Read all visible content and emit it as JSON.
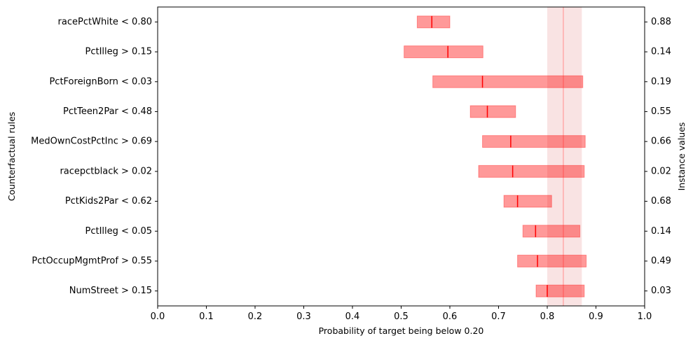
{
  "chart_data": {
    "type": "interval",
    "xlabel": "Probability of target being below 0.20",
    "ylabel_left": "Counterfactual rules",
    "ylabel_right": "Instance values",
    "xlim": [
      0.0,
      1.0
    ],
    "xticks": [
      0.0,
      0.1,
      0.2,
      0.3,
      0.4,
      0.5,
      0.6,
      0.7,
      0.8,
      0.9,
      1.0
    ],
    "xtick_labels": [
      "0.0",
      "0.1",
      "0.2",
      "0.3",
      "0.4",
      "0.5",
      "0.6",
      "0.7",
      "0.8",
      "0.9",
      "1.0"
    ],
    "reference": {
      "value": 0.833,
      "band": [
        0.8,
        0.871
      ]
    },
    "colors": {
      "bar": "#ff0000",
      "marker": "#ff0000",
      "band": "#f4cccc",
      "line": "#ffaaaa"
    },
    "rules": [
      {
        "label": "racePctWhite < 0.80",
        "low": 0.533,
        "high": 0.6,
        "value": 0.563,
        "instance": "0.88"
      },
      {
        "label": "PctIlleg > 0.15",
        "low": 0.506,
        "high": 0.668,
        "value": 0.596,
        "instance": "0.14"
      },
      {
        "label": "PctForeignBorn < 0.03",
        "low": 0.565,
        "high": 0.873,
        "value": 0.667,
        "instance": "0.19"
      },
      {
        "label": "PctTeen2Par < 0.48",
        "low": 0.642,
        "high": 0.735,
        "value": 0.677,
        "instance": "0.55"
      },
      {
        "label": "MedOwnCostPctInc > 0.69",
        "low": 0.667,
        "high": 0.878,
        "value": 0.725,
        "instance": "0.66"
      },
      {
        "label": "racepctblack > 0.02",
        "low": 0.659,
        "high": 0.876,
        "value": 0.729,
        "instance": "0.02"
      },
      {
        "label": "PctKids2Par < 0.62",
        "low": 0.711,
        "high": 0.809,
        "value": 0.739,
        "instance": "0.68"
      },
      {
        "label": "PctIlleg < 0.05",
        "low": 0.75,
        "high": 0.867,
        "value": 0.776,
        "instance": "0.14"
      },
      {
        "label": "PctOccupMgmtProf > 0.55",
        "low": 0.739,
        "high": 0.88,
        "value": 0.78,
        "instance": "0.49"
      },
      {
        "label": "NumStreet > 0.15",
        "low": 0.777,
        "high": 0.876,
        "value": 0.8,
        "instance": "0.03"
      }
    ]
  }
}
